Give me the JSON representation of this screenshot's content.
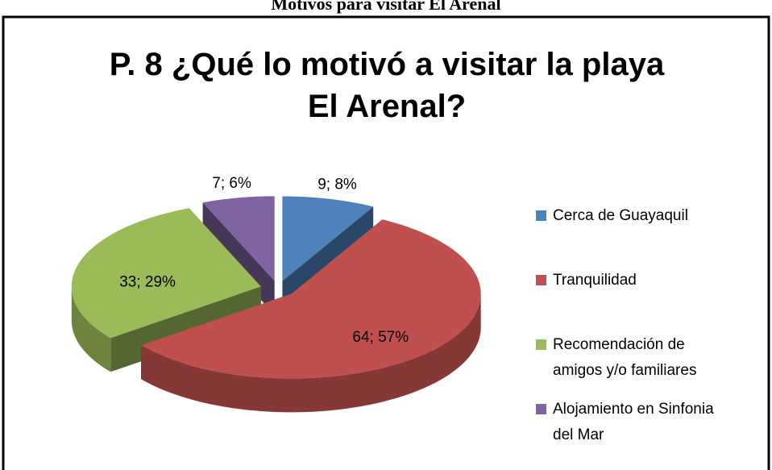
{
  "chart_data": {
    "type": "pie",
    "heading": "Motivos para visitar El Arenal",
    "title": [
      "P. 8 ¿Qué lo motivó a visitar la playa",
      "El Arenal?"
    ],
    "categories": [
      [
        "Cerca de Guayaquil"
      ],
      [
        "Tranquilidad"
      ],
      [
        "Recomendación de",
        "amigos y/o familiares"
      ],
      [
        "Alojamiento en Sinfonia",
        "del Mar"
      ]
    ],
    "values": [
      9,
      64,
      33,
      7
    ],
    "value_labels": [
      "9; 8%",
      "64; 57%",
      "33; 29%",
      "7; 6%"
    ],
    "colors": [
      "#4f81bd",
      "#c0504d",
      "#9bbb59",
      "#8064a2"
    ],
    "legend": "right"
  }
}
